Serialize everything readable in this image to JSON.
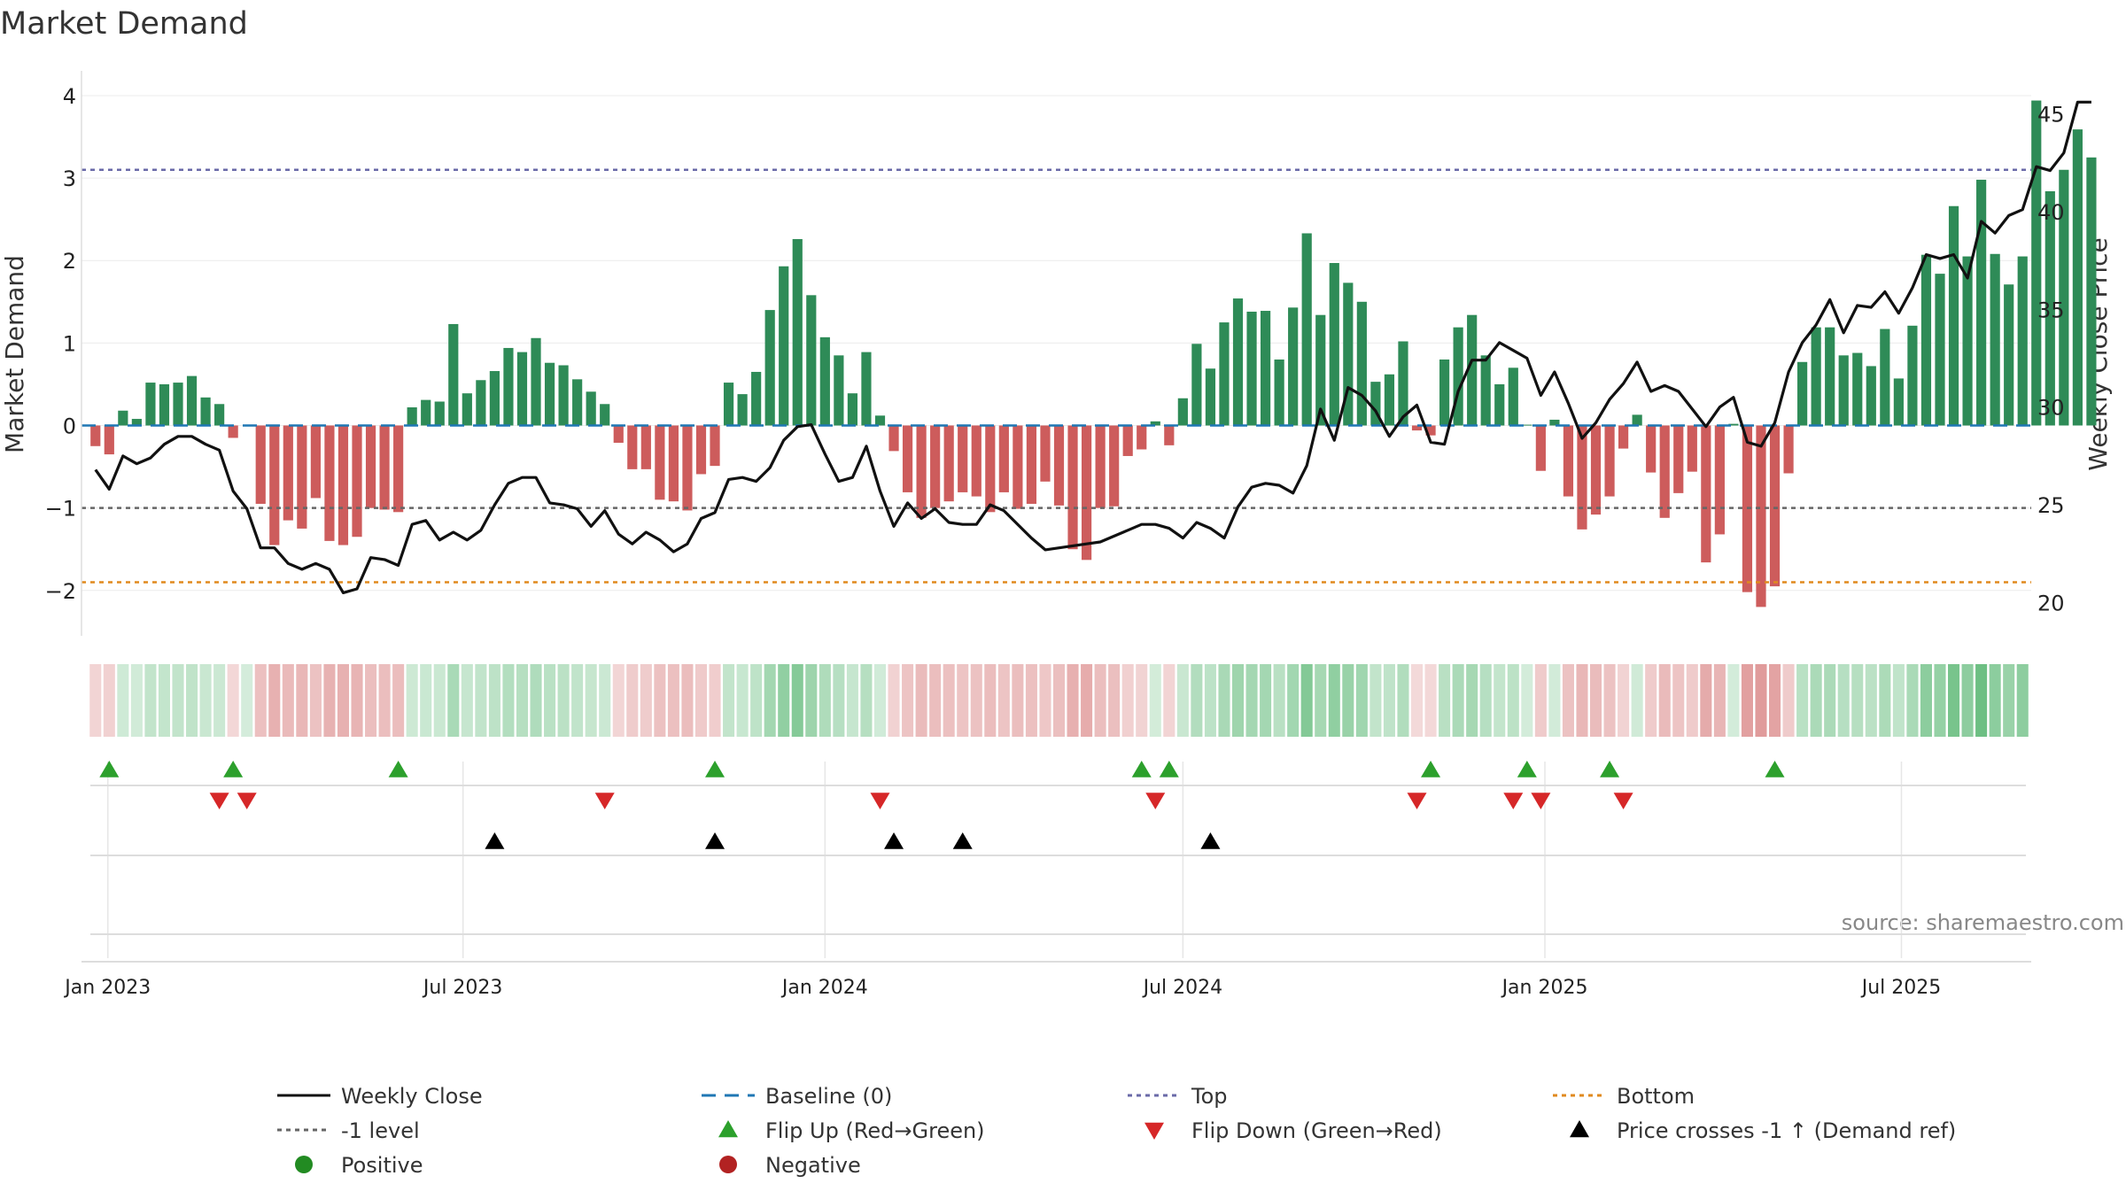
{
  "chart_data": {
    "type": "bar",
    "title": "Market Demand",
    "ylabel": "Market Demand",
    "y2label": "Weekly Close Price",
    "ylim": [
      -2.55,
      4.3
    ],
    "y2lim": [
      18.3,
      47.2
    ],
    "yticks": [
      -2,
      -1,
      0,
      1,
      2,
      3,
      4
    ],
    "y2ticks": [
      20,
      25,
      30,
      35,
      40,
      45
    ],
    "x_start_week": 0,
    "x_end_week": 140,
    "x_ticks": [
      {
        "label": "Jan 2023",
        "week": 0.9
      },
      {
        "label": "Jul 2023",
        "week": 26.7
      },
      {
        "label": "Jan 2024",
        "week": 53.0
      },
      {
        "label": "Jul 2024",
        "week": 79.0
      },
      {
        "label": "Jan 2025",
        "week": 105.3
      },
      {
        "label": "Jul 2025",
        "week": 131.2
      }
    ],
    "reference_lines": {
      "top": 3.1,
      "minus_one": -1.0,
      "bottom": -1.9,
      "baseline": 0
    },
    "demand_values": [
      -0.25,
      -0.35,
      0.18,
      0.08,
      0.52,
      0.5,
      0.52,
      0.6,
      0.34,
      0.26,
      -0.15,
      0,
      -0.95,
      -1.45,
      -1.15,
      -1.25,
      -0.88,
      -1.4,
      -1.45,
      -1.35,
      -1.0,
      -1.02,
      -1.05,
      0.22,
      0.31,
      0.29,
      1.23,
      0.39,
      0.55,
      0.66,
      0.94,
      0.89,
      1.06,
      0.76,
      0.73,
      0.56,
      0.41,
      0.26,
      -0.21,
      -0.53,
      -0.53,
      -0.9,
      -0.92,
      -1.03,
      -0.59,
      -0.49,
      0.52,
      0.38,
      0.65,
      1.4,
      1.93,
      2.26,
      1.58,
      1.07,
      0.85,
      0.39,
      0.89,
      0.12,
      -0.31,
      -0.81,
      -1.12,
      -1.0,
      -0.92,
      -0.81,
      -0.86,
      -1.05,
      -0.81,
      -1.01,
      -0.95,
      -0.68,
      -0.97,
      -1.5,
      -1.63,
      -1.0,
      -0.98,
      -0.37,
      -0.29,
      0.05,
      -0.24,
      0.33,
      0.99,
      0.69,
      1.25,
      1.54,
      1.38,
      1.39,
      0.8,
      1.43,
      2.33,
      1.34,
      1.97,
      1.73,
      1.5,
      0.53,
      0.62,
      1.02,
      -0.06,
      -0.12,
      0.8,
      1.19,
      1.34,
      0.85,
      0.5,
      0.7,
      0.01,
      -0.55,
      0.07,
      -0.86,
      -1.26,
      -1.08,
      -0.86,
      -0.28,
      0.13,
      -0.57,
      -1.12,
      -0.82,
      -0.56,
      -1.66,
      -1.32,
      0.02,
      -2.02,
      -2.2,
      -1.95,
      -0.58,
      0.77,
      1.19,
      1.19,
      0.85,
      0.88,
      0.72,
      1.17,
      0.57,
      1.21,
      2.07,
      1.84,
      2.66,
      2.05,
      2.98,
      2.08,
      1.71,
      2.05,
      3.94,
      2.84,
      3.1,
      3.59,
      3.25
    ],
    "weekly_close": [
      26.8,
      25.8,
      27.5,
      27.1,
      27.4,
      28.1,
      28.5,
      28.5,
      28.1,
      27.8,
      25.7,
      24.8,
      22.8,
      22.8,
      22.0,
      21.7,
      22.0,
      21.7,
      20.5,
      20.7,
      22.3,
      22.2,
      21.9,
      24.0,
      24.2,
      23.2,
      23.6,
      23.2,
      23.7,
      25.0,
      26.1,
      26.4,
      26.4,
      25.1,
      25.0,
      24.8,
      23.9,
      24.7,
      23.5,
      23.0,
      23.6,
      23.2,
      22.6,
      23.0,
      24.3,
      24.6,
      26.3,
      26.4,
      26.2,
      26.9,
      28.3,
      29.0,
      29.1,
      27.6,
      26.2,
      26.4,
      28.0,
      25.7,
      23.9,
      25.1,
      24.3,
      24.8,
      24.1,
      24.0,
      24.0,
      25.0,
      24.7,
      24.0,
      23.3,
      22.7,
      22.8,
      22.9,
      23.0,
      23.1,
      23.4,
      23.7,
      24.0,
      24.0,
      23.8,
      23.3,
      24.1,
      23.8,
      23.3,
      24.9,
      25.9,
      26.1,
      26.0,
      25.6,
      27.0,
      29.9,
      28.3,
      31.0,
      30.6,
      29.8,
      28.5,
      29.5,
      30.1,
      28.2,
      28.1,
      30.8,
      32.4,
      32.4,
      33.3,
      32.9,
      32.5,
      30.6,
      31.8,
      30.2,
      28.4,
      29.2,
      30.4,
      31.2,
      32.3,
      30.8,
      31.1,
      30.8,
      29.9,
      29.0,
      30.0,
      30.5,
      28.2,
      28.0,
      29.2,
      31.8,
      33.3,
      34.2,
      35.5,
      33.8,
      35.2,
      35.1,
      35.9,
      34.8,
      36.1,
      37.8,
      37.6,
      37.8,
      36.6,
      39.5,
      38.9,
      39.8,
      40.1,
      42.3,
      42.1,
      43.0,
      45.6,
      45.6
    ],
    "heat_strip_weeks": 144,
    "flip_up_weeks": [
      1,
      10,
      22,
      45,
      76,
      78,
      97,
      104,
      110,
      122
    ],
    "flip_down_weeks": [
      9,
      11,
      37,
      57,
      77,
      96,
      103,
      105,
      111
    ],
    "price_cross_weeks": [
      29,
      45,
      58,
      63,
      81
    ],
    "source_text": "source: sharemaestro.com",
    "colors": {
      "positive_bar": "#2e8b57",
      "negative_bar": "#cd5c5c",
      "close_line": "#111111",
      "baseline": "#1f77b4",
      "top_line": "#6a6aa8",
      "minus_one_line": "#666666",
      "bottom_line": "#e08a1e",
      "flip_up": "#2ca02c",
      "flip_down": "#d62728",
      "cross": "#000000",
      "positive_dot": "#228b22",
      "negative_dot": "#b22222"
    },
    "legend": [
      {
        "label": "Weekly Close",
        "symbol": "line-solid",
        "color": "#111111"
      },
      {
        "label": "Baseline (0)",
        "symbol": "line-dash",
        "color": "#1f77b4"
      },
      {
        "label": "Top",
        "symbol": "line-dot",
        "color": "#6a6aa8"
      },
      {
        "label": "Bottom",
        "symbol": "line-dot",
        "color": "#e08a1e"
      },
      {
        "label": "-1 level",
        "symbol": "line-dot",
        "color": "#666666"
      },
      {
        "label": "Flip Up (Red→Green)",
        "symbol": "tri-up",
        "color": "#2ca02c"
      },
      {
        "label": "Flip Down (Green→Red)",
        "symbol": "tri-down",
        "color": "#d62728"
      },
      {
        "label": "Price crosses -1 ↑ (Demand ref)",
        "symbol": "tri-up",
        "color": "#000000"
      },
      {
        "label": "Positive",
        "symbol": "dot",
        "color": "#228b22"
      },
      {
        "label": "Negative",
        "symbol": "dot",
        "color": "#b22222"
      }
    ]
  }
}
